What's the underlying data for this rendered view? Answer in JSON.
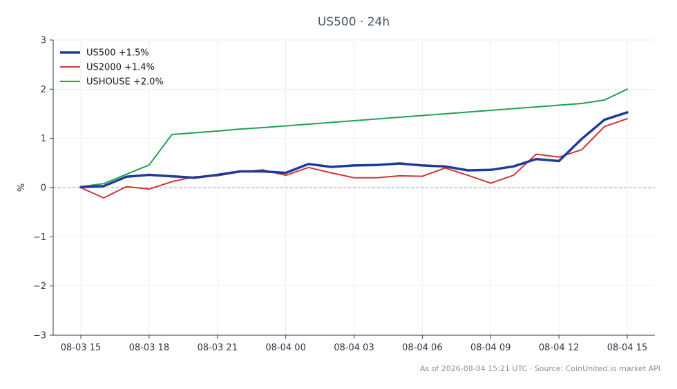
{
  "chart_data": {
    "type": "line",
    "title": "US500 · 24h",
    "ylabel": "%",
    "xlabel": "",
    "ylim": [
      -3,
      3
    ],
    "yticks": [
      "3",
      "2",
      "1",
      "0",
      "−1",
      "−2",
      "−3"
    ],
    "ytick_values": [
      3,
      2,
      1,
      0,
      -1,
      -2,
      -3
    ],
    "xlim": [
      0,
      24
    ],
    "xticks": [
      "08-03 15",
      "08-03 18",
      "08-03 21",
      "08-04 00",
      "08-04 03",
      "08-04 06",
      "08-04 09",
      "08-04 12",
      "08-04 15"
    ],
    "xtick_values": [
      0,
      3,
      6,
      9,
      12,
      15,
      18,
      21,
      24
    ],
    "grid": true,
    "zero_line": true,
    "legend_position": "top-left",
    "x": [
      0,
      1,
      2,
      3,
      4,
      5,
      6,
      7,
      8,
      9,
      10,
      11,
      12,
      13,
      14,
      15,
      16,
      17,
      18,
      19,
      20,
      21,
      22,
      23,
      24
    ],
    "series": [
      {
        "name": "US500 +1.5%",
        "color": "#1f3b99",
        "values": [
          0.01,
          0.03,
          0.22,
          0.26,
          0.23,
          0.2,
          0.26,
          0.33,
          0.33,
          0.3,
          0.48,
          0.42,
          0.45,
          0.46,
          0.49,
          0.45,
          0.43,
          0.35,
          0.36,
          0.43,
          0.58,
          0.54,
          0.99,
          1.38,
          1.53
        ]
      },
      {
        "name": "US2000 +1.4%",
        "color": "#d03434",
        "values": [
          0.0,
          -0.21,
          0.02,
          -0.03,
          0.12,
          0.22,
          0.24,
          0.32,
          0.36,
          0.25,
          0.41,
          0.3,
          0.2,
          0.2,
          0.24,
          0.23,
          0.4,
          0.25,
          0.09,
          0.25,
          0.68,
          0.62,
          0.77,
          1.24,
          1.4
        ]
      },
      {
        "name": "USHOUSE +2.0%",
        "color": "#20a050",
        "values": [
          0.02,
          0.08,
          0.27,
          0.46,
          1.08,
          1.115,
          1.15,
          1.19,
          1.22,
          1.255,
          1.29,
          1.325,
          1.36,
          1.395,
          1.43,
          1.465,
          1.5,
          1.535,
          1.57,
          1.605,
          1.64,
          1.675,
          1.71,
          1.78,
          2.0
        ]
      }
    ]
  },
  "footer": "As of 2026-08-04 15:21 UTC · Source: CoinUnited.io market API"
}
